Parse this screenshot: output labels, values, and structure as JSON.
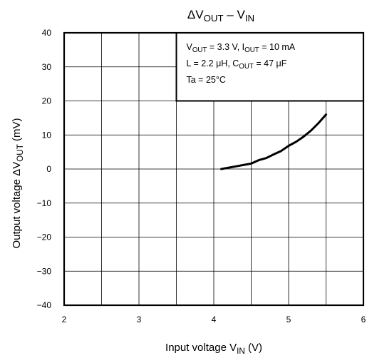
{
  "chart_data": {
    "type": "line",
    "title": {
      "main": "ΔV",
      "sub": "OUT",
      "sep": " – V",
      "sub2": "IN"
    },
    "xlabel": {
      "main": "Input voltage   V",
      "sub": "IN",
      "unit": "    (V)"
    },
    "ylabel": {
      "main": "Output voltage   ΔV",
      "sub": "OUT",
      "unit": "    (mV)"
    },
    "xlim": [
      2,
      6
    ],
    "ylim": [
      -40,
      40
    ],
    "xticks": [
      "2",
      "3",
      "4",
      "5",
      "6"
    ],
    "yticks": [
      "40",
      "30",
      "20",
      "10",
      "0",
      "−10",
      "−20",
      "−30",
      "−40"
    ],
    "x_grid_step": 0.5,
    "y_grid_step": 10,
    "grid": true,
    "conditions": [
      {
        "parts": [
          [
            "V",
            ""
          ],
          [
            "OUT",
            "sub"
          ],
          [
            " = 3.3 V, I",
            ""
          ],
          [
            "OUT",
            "sub"
          ],
          [
            " = 10 mA",
            ""
          ]
        ]
      },
      {
        "parts": [
          [
            "L = 2.2 μH, C",
            ""
          ],
          [
            "OUT",
            "sub"
          ],
          [
            " = 47 μF",
            ""
          ]
        ]
      },
      {
        "parts": [
          [
            "Ta = 25°C",
            ""
          ]
        ]
      }
    ],
    "series": [
      {
        "x": [
          4.1,
          4.3,
          4.5,
          4.6,
          4.7,
          4.8,
          4.9,
          5.0,
          5.1,
          5.2,
          5.3,
          5.4,
          5.5
        ],
        "y": [
          0.0,
          0.8,
          1.6,
          2.6,
          3.2,
          4.3,
          5.3,
          6.8,
          8.0,
          9.5,
          11.3,
          13.5,
          16.0
        ]
      }
    ]
  },
  "colors": {
    "line": "#000000",
    "grid": "#000000",
    "background": "#ffffff"
  }
}
